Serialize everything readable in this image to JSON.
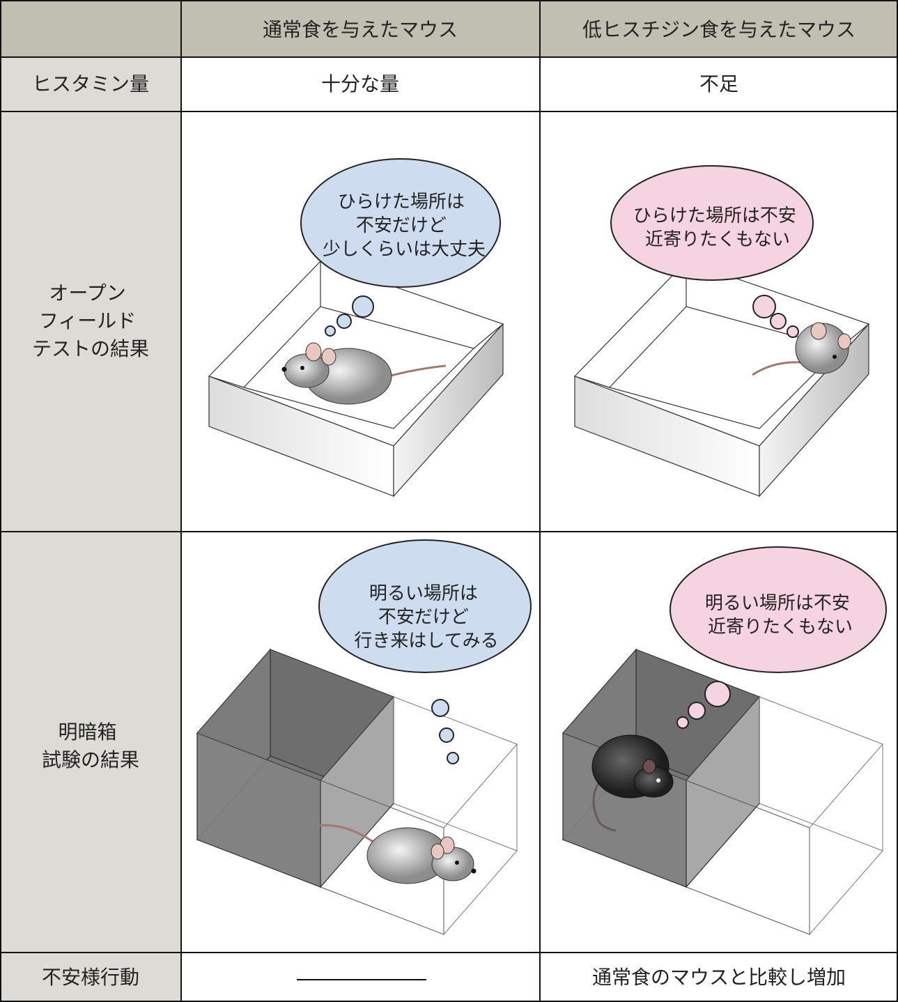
{
  "table": {
    "header": {
      "normal": "通常食を与えたマウス",
      "low_histidine": "低ヒスチジン食を与えたマウス"
    },
    "rows": [
      {
        "label": "ヒスタミン量",
        "normal": "十分な量",
        "low_histidine": "不足"
      },
      {
        "label": [
          "オープン",
          "フィールド",
          "テストの結果"
        ],
        "normal_bubble": [
          "ひらけた場所は",
          "不安だけど",
          "少しくらいは大丈夫"
        ],
        "low_histidine_bubble": [
          "ひらけた場所は不安",
          "近寄りたくもない"
        ]
      },
      {
        "label": [
          "明暗箱",
          "試験の結果"
        ],
        "normal_bubble": [
          "明るい場所は",
          "不安だけど",
          "行き来はしてみる"
        ],
        "low_histidine_bubble": [
          "明るい場所は不安",
          "近寄りたくもない"
        ]
      },
      {
        "label": "不安様行動",
        "low_histidine": "通常食のマウスと比較し増加"
      }
    ]
  }
}
